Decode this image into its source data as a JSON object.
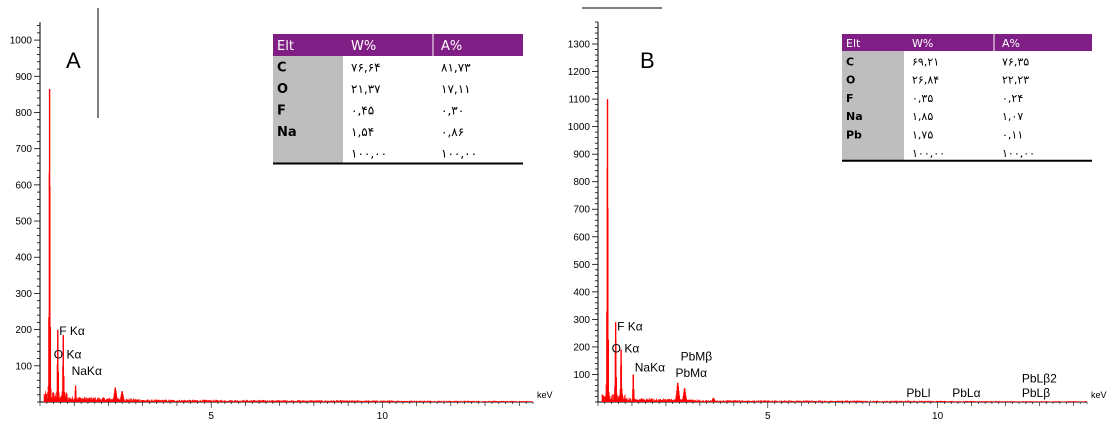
{
  "chart_data": [
    {
      "type": "line",
      "panel_label": "A",
      "x_unit": "keV",
      "xlim": [
        0,
        14.4
      ],
      "ylim": [
        0,
        1050
      ],
      "x_ticks": [
        5,
        10
      ],
      "y_ticks": [
        100,
        200,
        300,
        400,
        500,
        600,
        700,
        800,
        900,
        1000
      ],
      "color": "#ff0000",
      "peaks": [
        {
          "x": 0.28,
          "y": 865
        },
        {
          "x": 0.52,
          "y": 200
        },
        {
          "x": 0.68,
          "y": 185
        },
        {
          "x": 1.04,
          "y": 45
        },
        {
          "x": 2.2,
          "y": 40
        },
        {
          "x": 2.4,
          "y": 30
        }
      ],
      "peak_labels": [
        {
          "text": "F Kα",
          "x": 0.68,
          "y": 185
        },
        {
          "text": "O Kα",
          "x": 0.52,
          "y": 120
        },
        {
          "text": "NaKα",
          "x": 1.04,
          "y": 75
        }
      ],
      "table": {
        "headers": [
          "Elt",
          "W%",
          "A%"
        ],
        "rows": [
          [
            "C",
            "۷۶,۶۴",
            "۸۱,۷۳"
          ],
          [
            "O",
            "۲۱,۳۷",
            "۱۷,۱۱"
          ],
          [
            "F",
            "۰,۴۵",
            "۰,۳۰"
          ],
          [
            "Na",
            "۱,۵۴",
            "۰,۸۶"
          ],
          [
            "",
            "۱۰۰,۰۰",
            "۱۰۰,۰۰"
          ]
        ]
      }
    },
    {
      "type": "line",
      "panel_label": "B",
      "x_unit": "keV",
      "xlim": [
        0,
        14.4
      ],
      "ylim": [
        0,
        1380
      ],
      "x_ticks": [
        5,
        10
      ],
      "y_ticks": [
        100,
        200,
        300,
        400,
        500,
        600,
        700,
        800,
        900,
        1000,
        1100,
        1200,
        1300
      ],
      "color": "#ff0000",
      "peaks": [
        {
          "x": 0.28,
          "y": 1100
        },
        {
          "x": 0.52,
          "y": 290
        },
        {
          "x": 0.68,
          "y": 190
        },
        {
          "x": 1.04,
          "y": 100
        },
        {
          "x": 2.35,
          "y": 70
        },
        {
          "x": 2.55,
          "y": 50
        },
        {
          "x": 3.4,
          "y": 15
        }
      ],
      "peak_labels": [
        {
          "text": "F Kα",
          "x": 0.68,
          "y": 260
        },
        {
          "text": "O Kα",
          "x": 0.52,
          "y": 180
        },
        {
          "text": "NaKα",
          "x": 1.2,
          "y": 110
        },
        {
          "text": "PbMβ",
          "x": 2.55,
          "y": 150
        },
        {
          "text": "PbMα",
          "x": 2.4,
          "y": 90
        },
        {
          "text": "PbLl",
          "x": 9.2,
          "y": 18
        },
        {
          "text": "PbLα",
          "x": 10.55,
          "y": 18
        },
        {
          "text": "PbLβ2",
          "x": 12.6,
          "y": 70
        },
        {
          "text": "PbLβ",
          "x": 12.6,
          "y": 18
        }
      ],
      "table": {
        "headers": [
          "Elt",
          "W%",
          "A%"
        ],
        "rows": [
          [
            "C",
            "۶۹,۲۱",
            "۷۶,۳۵"
          ],
          [
            "O",
            "۲۶,۸۴",
            "۲۲,۲۳"
          ],
          [
            "F",
            "۰,۳۵",
            "۰,۲۴"
          ],
          [
            "Na",
            "۱,۸۵",
            "۱,۰۷"
          ],
          [
            "Pb",
            "۱,۷۵",
            "۰,۱۱"
          ],
          [
            "",
            "۱۰۰,۰۰",
            "۱۰۰,۰۰"
          ]
        ]
      }
    }
  ]
}
